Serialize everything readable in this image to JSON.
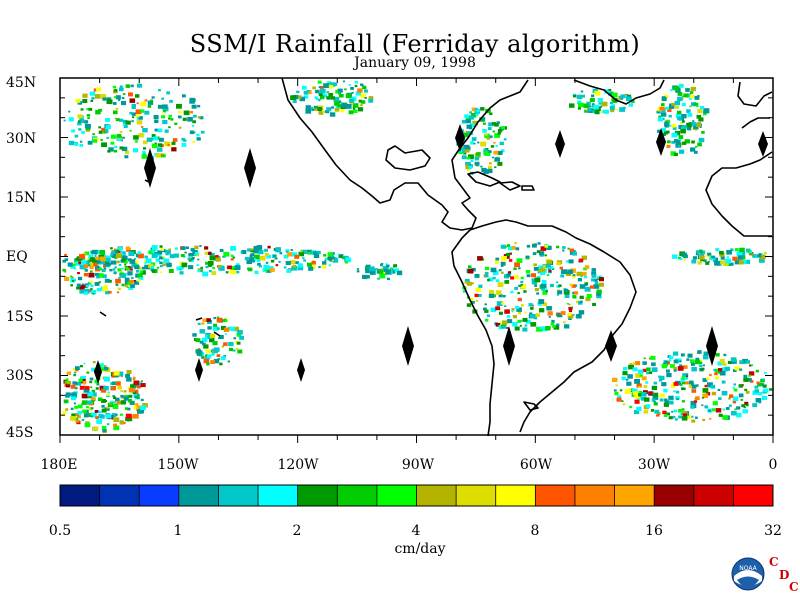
{
  "title": "SSM/I Rainfall (Ferriday algorithm)",
  "subtitle": "January 09, 1998",
  "latitude_labels": [
    "45N",
    "30N",
    "15N",
    "EQ",
    "15S",
    "30S",
    "45S"
  ],
  "longitude_labels": [
    "180E",
    "150W",
    "120W",
    "90W",
    "60W",
    "30W",
    "0"
  ],
  "colorbar": {
    "tick_labels": [
      "0.5",
      "1",
      "2",
      "4",
      "8",
      "16",
      "32"
    ],
    "units": "cm/day",
    "colors": [
      "#001a80",
      "#0033b3",
      "#0a3cff",
      "#00999a",
      "#00c8c8",
      "#00ffff",
      "#009900",
      "#00cc00",
      "#00ff00",
      "#b3b300",
      "#dddd00",
      "#ffff00",
      "#ff5500",
      "#ff8000",
      "#ffa500",
      "#990000",
      "#cc0000",
      "#ff0000"
    ]
  },
  "logo": {
    "name": "NOAA",
    "cdc_letters": [
      "C",
      "D",
      "C"
    ]
  },
  "chart_data": {
    "type": "heatmap",
    "title": "SSM/I Rainfall (Ferriday algorithm)",
    "subtitle": "January 09, 1998",
    "x_range": [
      -180,
      0
    ],
    "y_range": [
      -45,
      45
    ],
    "x_ticks": [
      -180,
      -150,
      -120,
      -90,
      -60,
      -30,
      0
    ],
    "y_ticks": [
      45,
      30,
      15,
      0,
      -15,
      -30,
      -45
    ],
    "color_scale": "log",
    "color_range": [
      0.5,
      32
    ],
    "units": "cm/day"
  }
}
